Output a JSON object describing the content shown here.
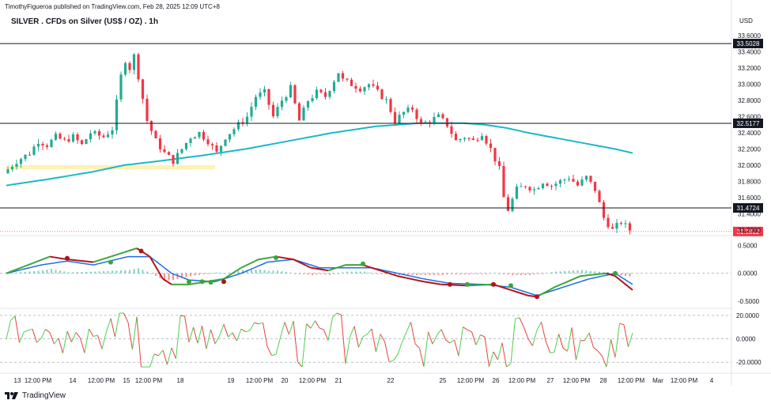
{
  "header": {
    "published": "TimothyFigueroa published on TradingView.com, Feb 28, 2025 12:09 UTC+8",
    "title": "SILVER . CFDs on Silver (US$ / OZ) . 1h",
    "currency": "USD"
  },
  "branding": {
    "name": "TradingView",
    "logo_icon": "tradingview-logo-icon"
  },
  "colors": {
    "bull": "#22ab94",
    "bear": "#f23645",
    "ma": "#1bb8c9",
    "zone": "#fff2b3",
    "osc_fast": "#3ba53a",
    "osc_slow": "#1e6fe0",
    "osc_fast_down": "#b3121a",
    "hist_pos": "#7fd1c7",
    "hist_neg": "#f28b8b",
    "osc2_up": "#4cd14c",
    "osc2_down": "#e8413b",
    "last_price_bg": "#f23645",
    "level_bg": "#131722"
  },
  "chart_data": [
    {
      "type": "candlestick",
      "title": "SILVER . CFDs on Silver (US$ / OZ) . 1h",
      "ylim": [
        31.15,
        33.65
      ],
      "y_ticks": [
        "33.6000",
        "33.4000",
        "33.2000",
        "33.0000",
        "32.8000",
        "32.6000",
        "32.4000",
        "32.2000",
        "32.0000",
        "31.8000",
        "31.6000",
        "31.4000",
        "31.2000"
      ],
      "x_ticks": [
        "13",
        "12:00 PM",
        "14",
        "12:00 PM",
        "15",
        "12:00 PM",
        "18",
        "19",
        "12:00 PM",
        "20",
        "12:00 PM",
        "21",
        "22",
        "25",
        "12:00 PM",
        "26",
        "12:00 PM",
        "27",
        "12:00 PM",
        "28",
        "12:00 PM",
        "Mar",
        "12:00 PM",
        "4"
      ],
      "price_path": [
        [
          0,
          31.9
        ],
        [
          3,
          32.05
        ],
        [
          6,
          32.15
        ],
        [
          8,
          32.3
        ],
        [
          10,
          32.25
        ],
        [
          12,
          32.35
        ],
        [
          14,
          32.3
        ],
        [
          16,
          32.35
        ],
        [
          18,
          32.25
        ],
        [
          20,
          32.4
        ],
        [
          23,
          32.35
        ],
        [
          25,
          32.45
        ],
        [
          27,
          33.1
        ],
        [
          28,
          33.3
        ],
        [
          29,
          33.2
        ],
        [
          30,
          33.35
        ],
        [
          31,
          33.1
        ],
        [
          33,
          32.55
        ],
        [
          35,
          32.3
        ],
        [
          37,
          32.15
        ],
        [
          39,
          32.05
        ],
        [
          41,
          32.2
        ],
        [
          43,
          32.35
        ],
        [
          45,
          32.4
        ],
        [
          47,
          32.3
        ],
        [
          49,
          32.15
        ],
        [
          51,
          32.35
        ],
        [
          53,
          32.45
        ],
        [
          56,
          32.6
        ],
        [
          58,
          32.85
        ],
        [
          60,
          32.9
        ],
        [
          62,
          32.6
        ],
        [
          64,
          32.8
        ],
        [
          66,
          32.95
        ],
        [
          68,
          32.55
        ],
        [
          70,
          32.8
        ],
        [
          72,
          32.9
        ],
        [
          74,
          32.85
        ],
        [
          76,
          33.05
        ],
        [
          77,
          33.15
        ],
        [
          78,
          33.05
        ],
        [
          80,
          33.0
        ],
        [
          82,
          32.95
        ],
        [
          84,
          33.0
        ],
        [
          86,
          32.9
        ],
        [
          88,
          32.8
        ],
        [
          90,
          32.55
        ],
        [
          92,
          32.65
        ],
        [
          94,
          32.7
        ],
        [
          96,
          32.5
        ],
        [
          98,
          32.55
        ],
        [
          100,
          32.6
        ],
        [
          102,
          32.5
        ],
        [
          104,
          32.3
        ],
        [
          106,
          32.35
        ],
        [
          108,
          32.3
        ],
        [
          110,
          32.4
        ],
        [
          112,
          32.2
        ],
        [
          114,
          31.95
        ],
        [
          115,
          31.6
        ],
        [
          116,
          31.45
        ],
        [
          118,
          31.7
        ],
        [
          120,
          31.75
        ],
        [
          122,
          31.7
        ],
        [
          124,
          31.8
        ],
        [
          126,
          31.75
        ],
        [
          128,
          31.8
        ],
        [
          130,
          31.85
        ],
        [
          132,
          31.75
        ],
        [
          134,
          31.85
        ],
        [
          136,
          31.7
        ],
        [
          138,
          31.35
        ],
        [
          140,
          31.2
        ],
        [
          142,
          31.3
        ],
        [
          144,
          31.2
        ]
      ],
      "ma_path": [
        [
          0,
          31.75
        ],
        [
          10,
          31.83
        ],
        [
          20,
          31.92
        ],
        [
          27,
          32.0
        ],
        [
          35,
          32.05
        ],
        [
          45,
          32.12
        ],
        [
          55,
          32.2
        ],
        [
          65,
          32.3
        ],
        [
          75,
          32.4
        ],
        [
          85,
          32.48
        ],
        [
          95,
          32.52
        ],
        [
          105,
          32.52
        ],
        [
          110,
          32.5
        ],
        [
          115,
          32.46
        ],
        [
          120,
          32.4
        ],
        [
          130,
          32.3
        ],
        [
          140,
          32.2
        ],
        [
          144,
          32.15
        ]
      ],
      "zone": {
        "x0": 0,
        "x1": 48,
        "y0": 31.95,
        "y1": 32.0
      },
      "levels": [
        33.5028,
        32.5177,
        31.4724
      ],
      "level_labels": [
        "33.5028",
        "32.5177",
        "31.4724"
      ],
      "last_price": 31.1812,
      "last_price_label": "31.1812",
      "n_bars": 144
    },
    {
      "type": "line",
      "ylim": [
        -0.6,
        0.62
      ],
      "y_ticks": [
        "0.5000",
        "0.0000",
        "-0.5000"
      ],
      "fast": [
        [
          0,
          0
        ],
        [
          5,
          0.15
        ],
        [
          10,
          0.3
        ],
        [
          14,
          0.25
        ],
        [
          20,
          0.2
        ],
        [
          26,
          0.35
        ],
        [
          30,
          0.45
        ],
        [
          33,
          0.3
        ],
        [
          36,
          -0.1
        ],
        [
          38,
          -0.2
        ],
        [
          42,
          -0.2
        ],
        [
          46,
          -0.15
        ],
        [
          50,
          -0.1
        ],
        [
          54,
          0.1
        ],
        [
          58,
          0.25
        ],
        [
          62,
          0.3
        ],
        [
          66,
          0.25
        ],
        [
          70,
          0.1
        ],
        [
          74,
          0.05
        ],
        [
          78,
          0.15
        ],
        [
          82,
          0.15
        ],
        [
          86,
          0.05
        ],
        [
          90,
          -0.05
        ],
        [
          96,
          -0.15
        ],
        [
          100,
          -0.2
        ],
        [
          106,
          -0.22
        ],
        [
          112,
          -0.2
        ],
        [
          116,
          -0.3
        ],
        [
          120,
          -0.4
        ],
        [
          122,
          -0.42
        ],
        [
          126,
          -0.25
        ],
        [
          132,
          -0.05
        ],
        [
          138,
          0.0
        ],
        [
          140,
          -0.05
        ],
        [
          144,
          -0.3
        ]
      ],
      "slow": [
        [
          0,
          0
        ],
        [
          8,
          0.15
        ],
        [
          14,
          0.22
        ],
        [
          20,
          0.15
        ],
        [
          28,
          0.3
        ],
        [
          33,
          0.3
        ],
        [
          38,
          0.0
        ],
        [
          42,
          -0.12
        ],
        [
          48,
          -0.15
        ],
        [
          54,
          0.0
        ],
        [
          60,
          0.2
        ],
        [
          66,
          0.25
        ],
        [
          72,
          0.1
        ],
        [
          78,
          0.1
        ],
        [
          84,
          0.1
        ],
        [
          90,
          0.0
        ],
        [
          96,
          -0.1
        ],
        [
          102,
          -0.18
        ],
        [
          110,
          -0.2
        ],
        [
          116,
          -0.25
        ],
        [
          122,
          -0.4
        ],
        [
          128,
          -0.25
        ],
        [
          134,
          -0.1
        ],
        [
          140,
          0.0
        ],
        [
          144,
          -0.2
        ]
      ],
      "dots": [
        [
          14,
          0.27
        ],
        [
          24,
          0.2
        ],
        [
          31,
          0.4
        ],
        [
          42,
          -0.15
        ],
        [
          45,
          -0.15
        ],
        [
          47,
          -0.16
        ],
        [
          50,
          -0.15
        ],
        [
          62,
          0.28
        ],
        [
          82,
          0.17
        ],
        [
          102,
          -0.2
        ],
        [
          106,
          -0.2
        ],
        [
          112,
          -0.2
        ],
        [
          116,
          -0.22
        ],
        [
          122,
          -0.42
        ],
        [
          140,
          0.0
        ]
      ]
    },
    {
      "type": "line",
      "ylim": [
        -28,
        24
      ],
      "y_ticks": [
        "20.0000",
        "0.0000",
        "-20.0000"
      ],
      "n_points": 144
    }
  ]
}
